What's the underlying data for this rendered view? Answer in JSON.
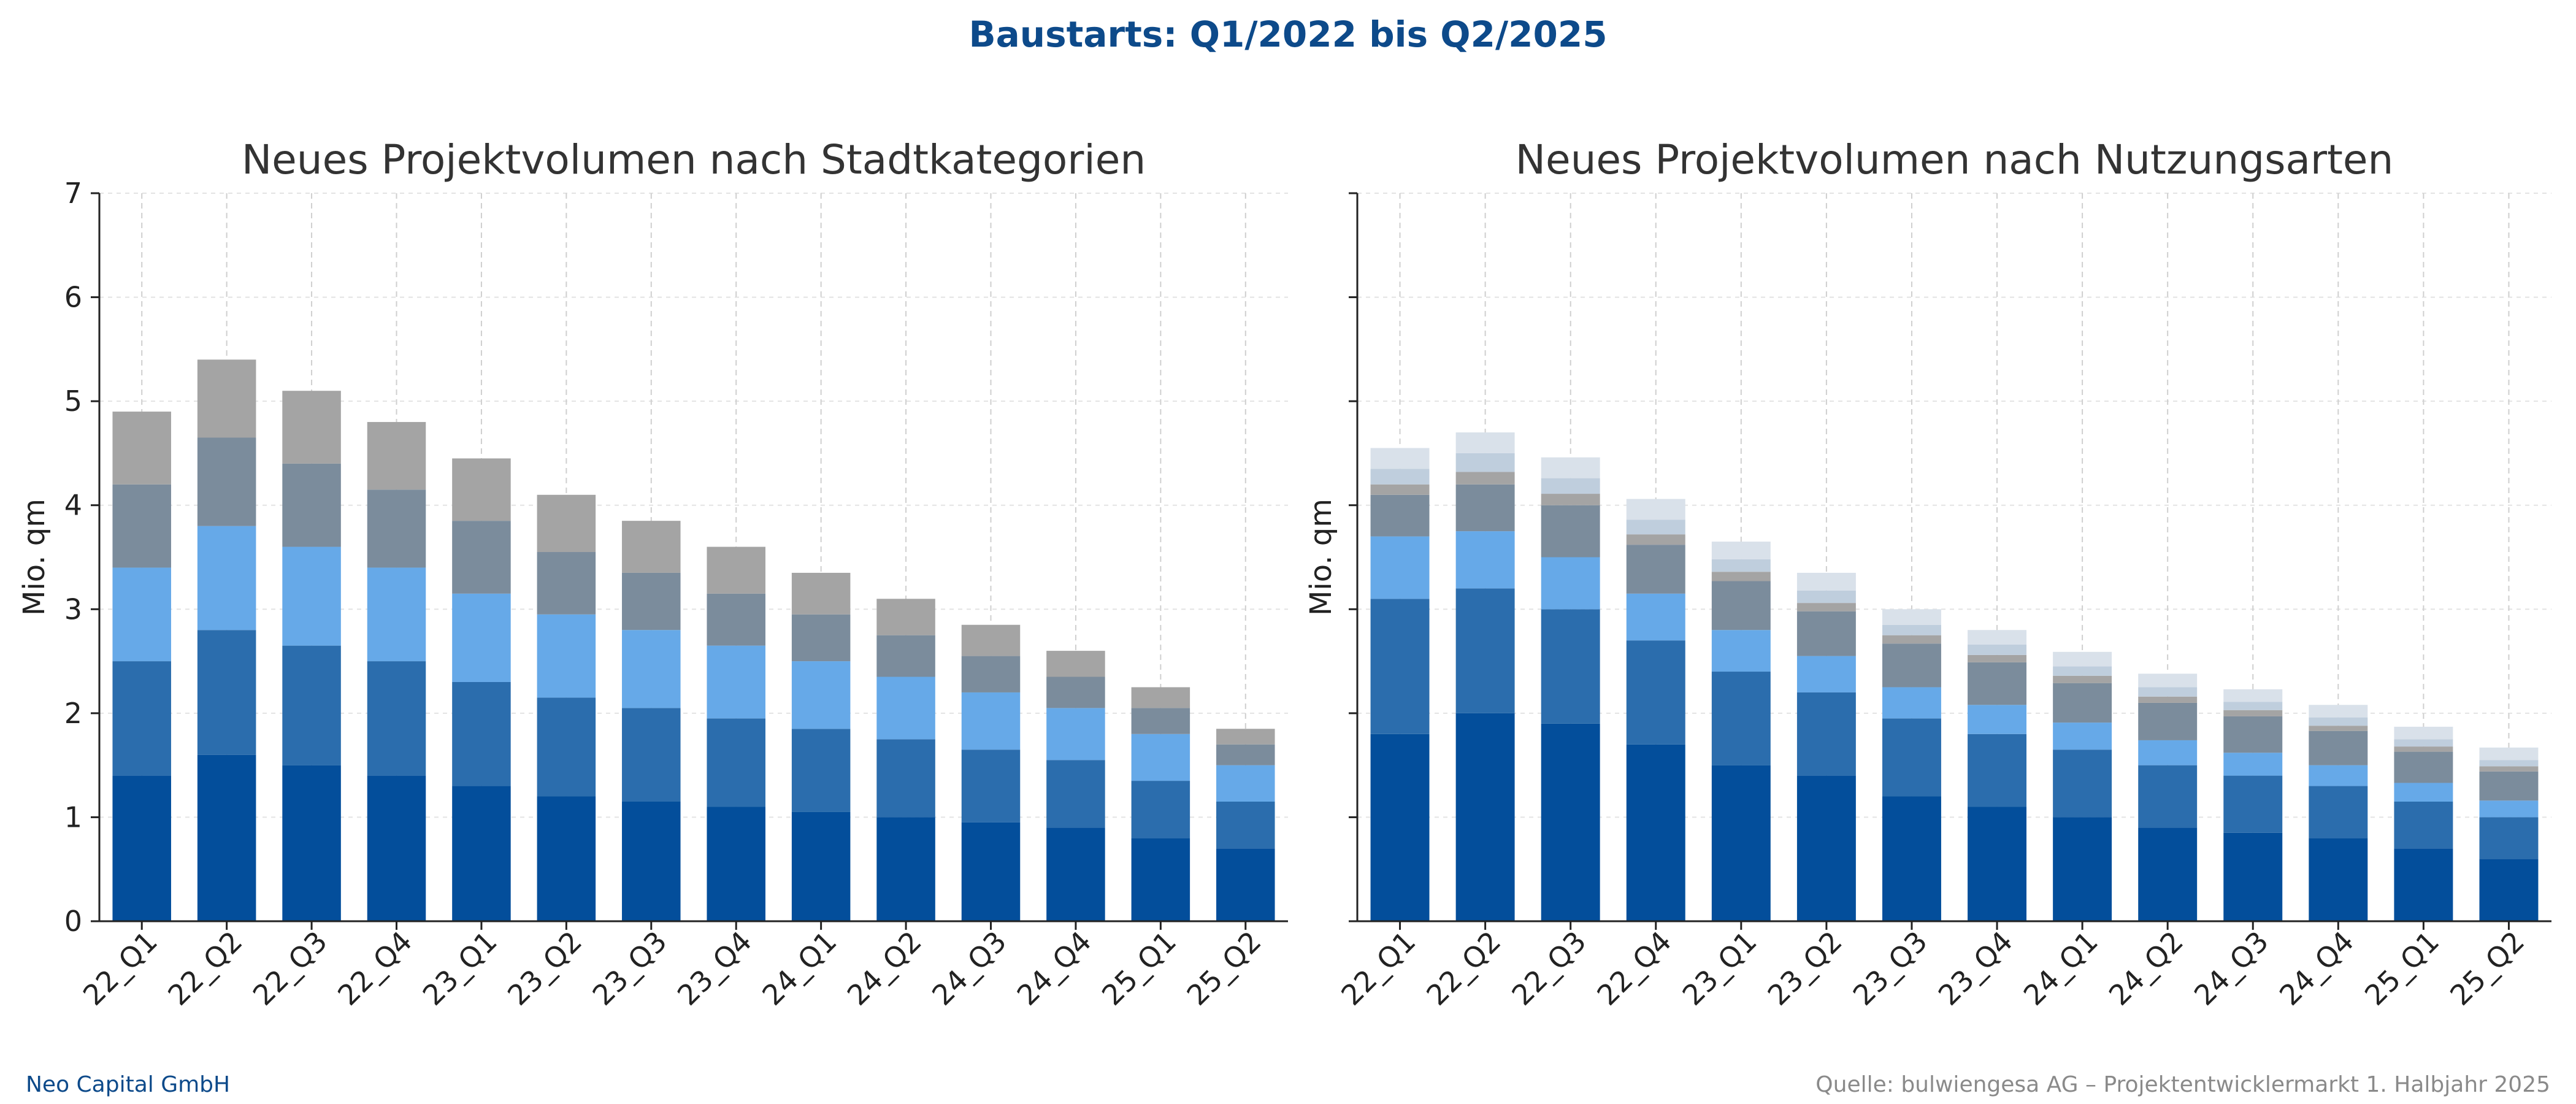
{
  "header": {
    "title": "Baustarts: Q1/2022 bis Q2/2025"
  },
  "footer": {
    "left": "Neo Capital GmbH",
    "right": "Quelle: bulwiengesa AG – Projektentwicklermarkt 1. Halbjahr 2025"
  },
  "chart_data": [
    {
      "type": "bar",
      "stacked": true,
      "title": "Neues Projektvolumen nach Stadtkategorien",
      "xlabel": "",
      "ylabel": "Mio. qm",
      "ylim": [
        0,
        7
      ],
      "yticks": [
        0,
        1,
        2,
        3,
        4,
        5,
        6,
        7
      ],
      "show_ytick_labels": true,
      "grid": true,
      "categories": [
        "22_Q1",
        "22_Q2",
        "22_Q3",
        "22_Q4",
        "23_Q1",
        "23_Q2",
        "23_Q3",
        "23_Q4",
        "24_Q1",
        "24_Q2",
        "24_Q3",
        "24_Q4",
        "25_Q1",
        "25_Q2"
      ],
      "series": [
        {
          "color": "#034e9b",
          "values": [
            1.4,
            1.6,
            1.5,
            1.4,
            1.3,
            1.2,
            1.15,
            1.1,
            1.05,
            1.0,
            0.95,
            0.9,
            0.8,
            0.7
          ]
        },
        {
          "color": "#2b6dad",
          "values": [
            1.1,
            1.2,
            1.15,
            1.1,
            1.0,
            0.95,
            0.9,
            0.85,
            0.8,
            0.75,
            0.7,
            0.65,
            0.55,
            0.45
          ]
        },
        {
          "color": "#66a9e8",
          "values": [
            0.9,
            1.0,
            0.95,
            0.9,
            0.85,
            0.8,
            0.75,
            0.7,
            0.65,
            0.6,
            0.55,
            0.5,
            0.45,
            0.35
          ]
        },
        {
          "color": "#7b8c9c",
          "values": [
            0.8,
            0.85,
            0.8,
            0.75,
            0.7,
            0.6,
            0.55,
            0.5,
            0.45,
            0.4,
            0.35,
            0.3,
            0.25,
            0.2
          ]
        },
        {
          "color": "#a4a4a4",
          "values": [
            0.7,
            0.75,
            0.7,
            0.65,
            0.6,
            0.55,
            0.5,
            0.45,
            0.4,
            0.35,
            0.3,
            0.25,
            0.2,
            0.15
          ]
        }
      ]
    },
    {
      "type": "bar",
      "stacked": true,
      "title": "Neues Projektvolumen nach Nutzungsarten",
      "xlabel": "",
      "ylabel": "Mio. qm",
      "ylim": [
        0,
        7
      ],
      "yticks": [
        0,
        1,
        2,
        3,
        4,
        5,
        6,
        7
      ],
      "show_ytick_labels": false,
      "grid": true,
      "categories": [
        "22_Q1",
        "22_Q2",
        "22_Q3",
        "22_Q4",
        "23_Q1",
        "23_Q2",
        "23_Q3",
        "23_Q4",
        "24_Q1",
        "24_Q2",
        "24_Q3",
        "24_Q4",
        "25_Q1",
        "25_Q2"
      ],
      "series": [
        {
          "color": "#034e9b",
          "values": [
            1.8,
            2.0,
            1.9,
            1.7,
            1.5,
            1.4,
            1.2,
            1.1,
            1.0,
            0.9,
            0.85,
            0.8,
            0.7,
            0.6
          ]
        },
        {
          "color": "#2b6dad",
          "values": [
            1.3,
            1.2,
            1.1,
            1.0,
            0.9,
            0.8,
            0.75,
            0.7,
            0.65,
            0.6,
            0.55,
            0.5,
            0.45,
            0.4
          ]
        },
        {
          "color": "#66a9e8",
          "values": [
            0.6,
            0.55,
            0.5,
            0.45,
            0.4,
            0.35,
            0.3,
            0.28,
            0.26,
            0.24,
            0.22,
            0.2,
            0.18,
            0.16
          ]
        },
        {
          "color": "#7b8c9c",
          "values": [
            0.4,
            0.45,
            0.5,
            0.47,
            0.47,
            0.43,
            0.42,
            0.41,
            0.38,
            0.36,
            0.35,
            0.33,
            0.3,
            0.28
          ]
        },
        {
          "color": "#a4a4a4",
          "values": [
            0.1,
            0.12,
            0.11,
            0.1,
            0.09,
            0.08,
            0.08,
            0.07,
            0.07,
            0.06,
            0.06,
            0.05,
            0.05,
            0.05
          ]
        },
        {
          "color": "#bfcedd",
          "values": [
            0.15,
            0.18,
            0.15,
            0.14,
            0.12,
            0.12,
            0.1,
            0.1,
            0.09,
            0.09,
            0.08,
            0.08,
            0.07,
            0.06
          ]
        },
        {
          "color": "#d9e1ea",
          "values": [
            0.2,
            0.2,
            0.2,
            0.2,
            0.17,
            0.17,
            0.15,
            0.14,
            0.14,
            0.13,
            0.12,
            0.12,
            0.12,
            0.12
          ]
        }
      ]
    }
  ]
}
